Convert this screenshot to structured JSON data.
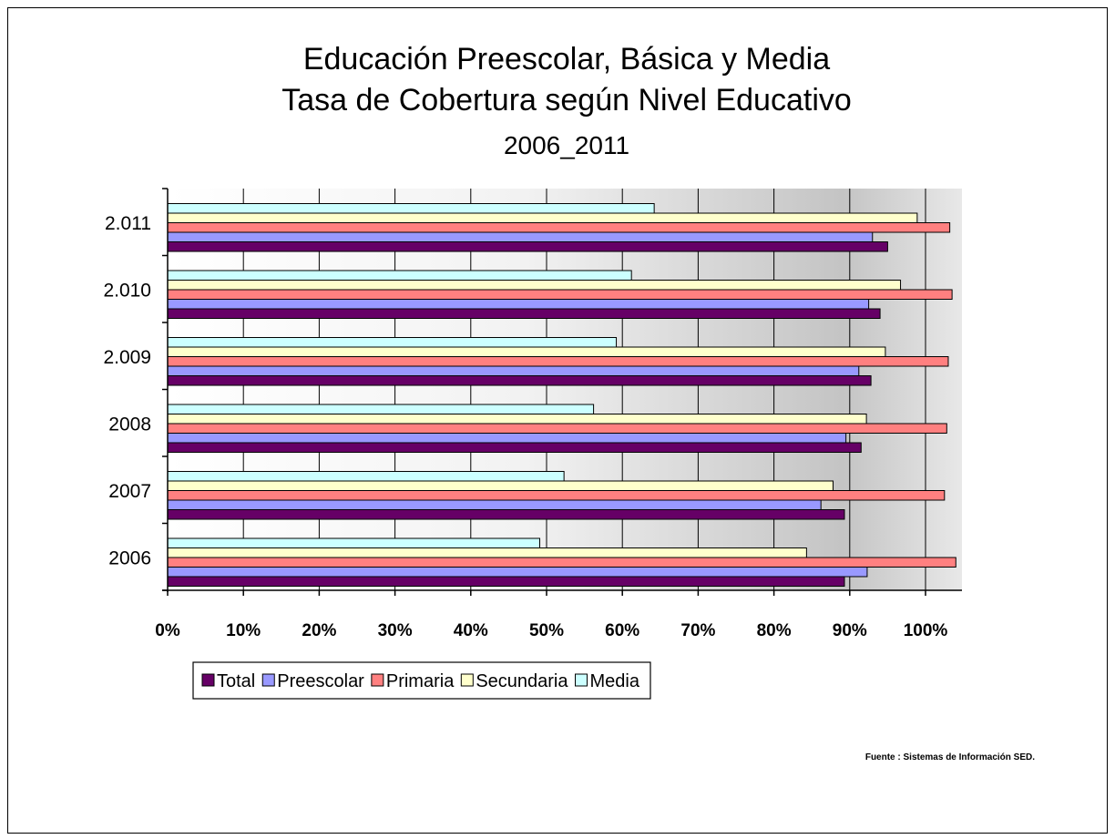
{
  "chart_data": {
    "type": "bar",
    "orientation": "horizontal",
    "title": [
      "Educación Preescolar, Básica y Media",
      "Tasa de Cobertura según Nivel Educativo"
    ],
    "subtitle": "2006_2011",
    "categories": [
      "2006",
      "2007",
      "2008",
      "2.009",
      "2.010",
      "2.011"
    ],
    "series": [
      {
        "name": "Total",
        "color": "#660066",
        "values": [
          89.3,
          89.3,
          91.5,
          92.8,
          94.0,
          95.0
        ]
      },
      {
        "name": "Preescolar",
        "color": "#9999ff",
        "values": [
          92.3,
          86.2,
          89.5,
          91.2,
          92.5,
          93.0
        ]
      },
      {
        "name": "Primaria",
        "color": "#ff8080",
        "values": [
          104.0,
          102.5,
          102.8,
          103.0,
          103.5,
          103.2
        ]
      },
      {
        "name": "Secundaria",
        "color": "#ffffcc",
        "values": [
          84.3,
          87.8,
          92.2,
          94.7,
          96.7,
          98.9
        ]
      },
      {
        "name": "Media",
        "color": "#ccffff",
        "values": [
          49.1,
          52.3,
          56.2,
          59.2,
          61.2,
          64.2
        ]
      }
    ],
    "xticks": [
      "0%",
      "10%",
      "20%",
      "30%",
      "40%",
      "50%",
      "60%",
      "70%",
      "80%",
      "90%",
      "100%"
    ],
    "xlim": [
      0,
      104.8
    ],
    "x_unit": "%",
    "grid": true,
    "legend_position": "bottom-left"
  },
  "source_note": "Fuente : Sistemas de Información SED."
}
